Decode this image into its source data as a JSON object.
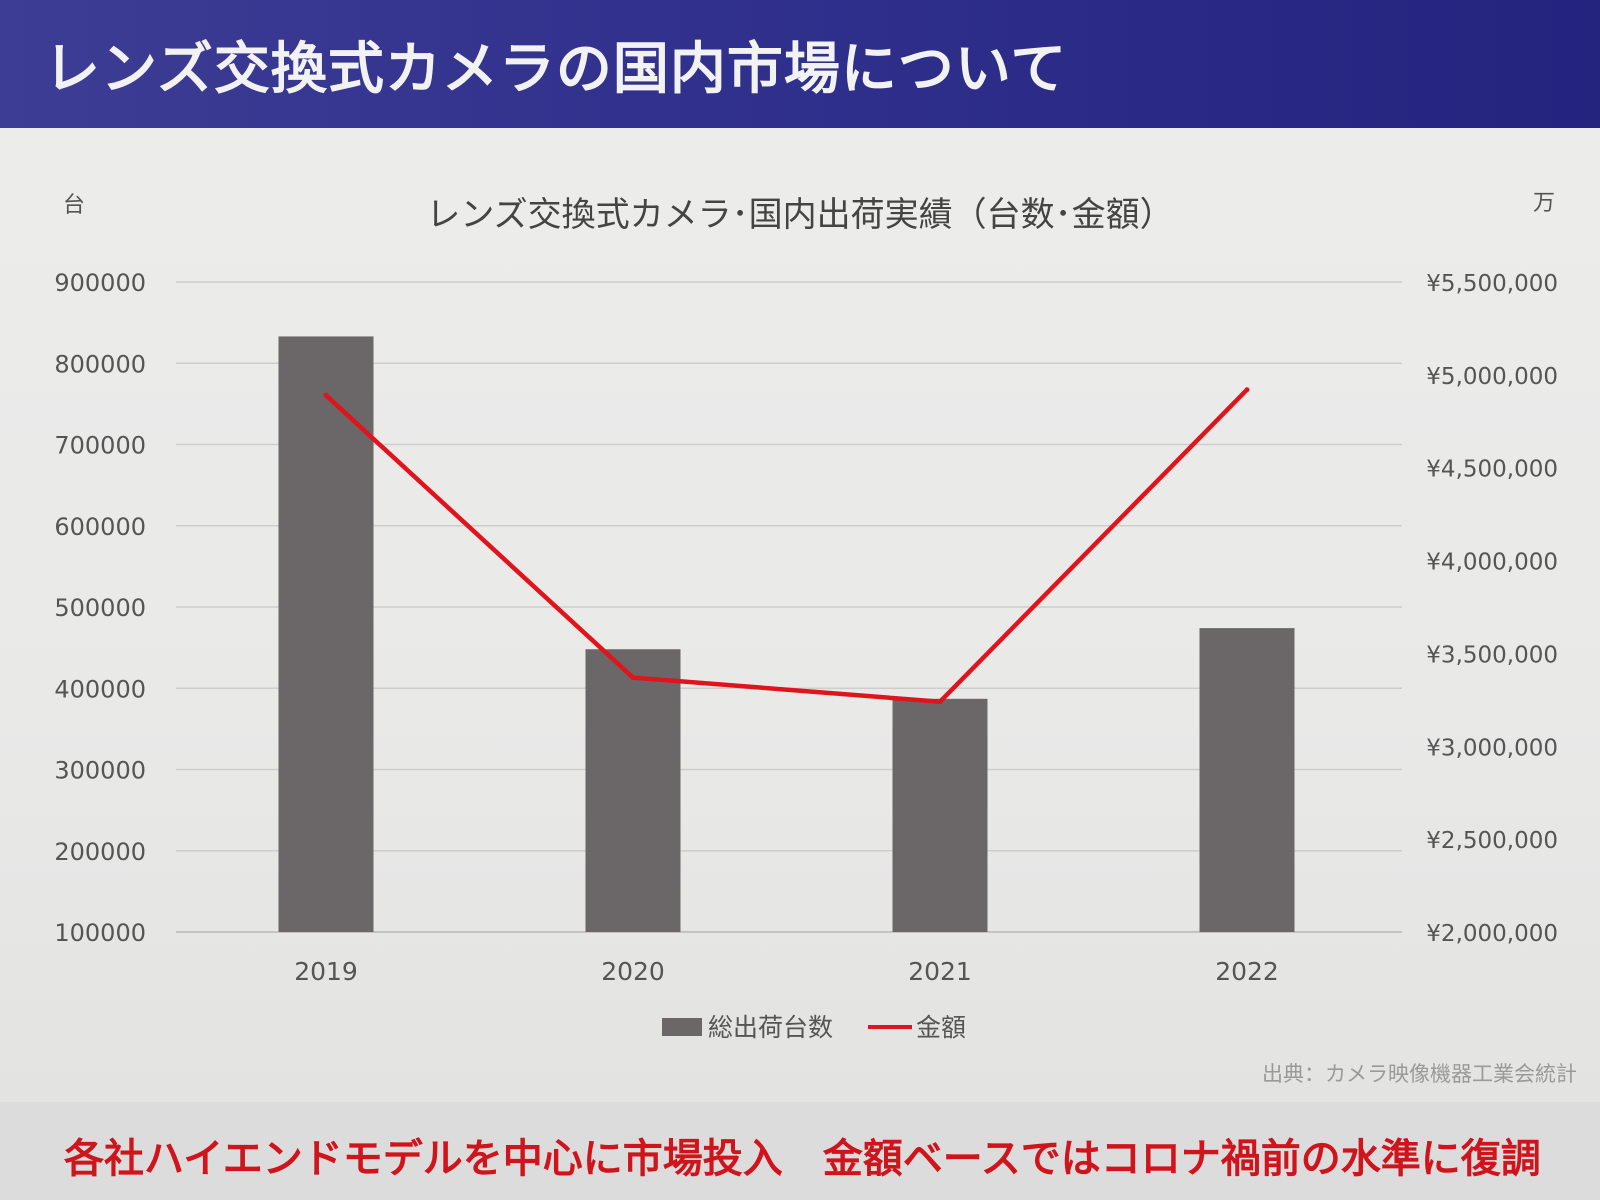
{
  "slide": {
    "title": "レンズ交換式カメラの国内市場について",
    "source": "出典：カメラ映像機器工業会統計",
    "conclusion": "各社ハイエンドモデルを中心に市場投入　金額ベースではコロナ禍前の水準に復調"
  },
  "colors": {
    "header": "#2f2f8c",
    "bar": "#6b6667",
    "line": "#e0141c",
    "conclusion": "#d0141c"
  },
  "chart_data": {
    "type": "bar",
    "title": "レンズ交換式カメラ･国内出荷実績（台数･金額）",
    "y_unit_left": "台",
    "y_unit_right": "万",
    "categories": [
      "2019",
      "2020",
      "2021",
      "2022"
    ],
    "ylim_left": [
      100000,
      900000
    ],
    "yticks_left": [
      "900000",
      "800000",
      "700000",
      "600000",
      "500000",
      "400000",
      "300000",
      "200000",
      "100000"
    ],
    "ylim_right": [
      2000000,
      5500000
    ],
    "yticks_right": [
      "¥5,500,000",
      "¥5,000,000",
      "¥4,500,000",
      "¥4,000,000",
      "¥3,500,000",
      "¥3,000,000",
      "¥2,500,000",
      "¥2,000,000"
    ],
    "grid": true,
    "legend_position": "bottom",
    "series": [
      {
        "name": "総出荷台数",
        "type": "bar",
        "axis": "left",
        "values": [
          833000,
          448000,
          387000,
          474000
        ]
      },
      {
        "name": "金額",
        "type": "line",
        "axis": "right",
        "values": [
          4890000,
          3370000,
          3240000,
          4920000
        ]
      }
    ]
  }
}
